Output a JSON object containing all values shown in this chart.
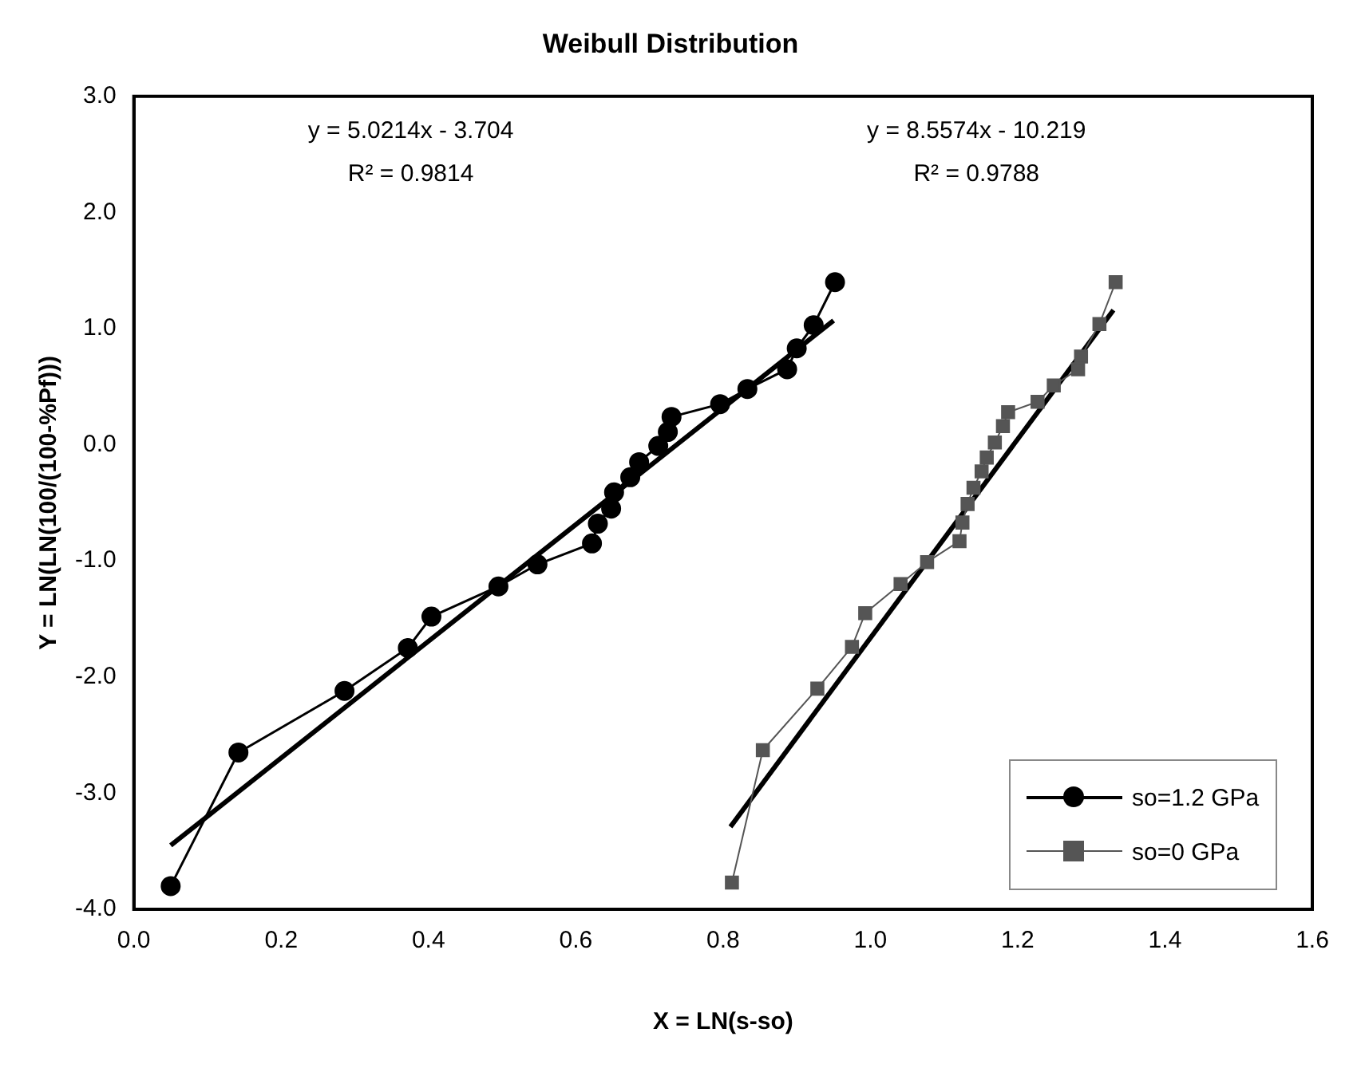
{
  "chart_data": {
    "type": "line",
    "title": "Weibull Distribution",
    "xlabel": "X = LN(s-so)",
    "ylabel": "Y = LN(LN(100/(100-%Pf)))",
    "xlim": [
      0,
      1.6
    ],
    "ylim": [
      -4,
      3
    ],
    "xticks": [
      {
        "value": 0,
        "label": "0.0"
      },
      {
        "value": 0.2,
        "label": "0.2"
      },
      {
        "value": 0.4,
        "label": "0.4"
      },
      {
        "value": 0.6,
        "label": "0.6"
      },
      {
        "value": 0.8,
        "label": "0.8"
      },
      {
        "value": 1,
        "label": "1.0"
      },
      {
        "value": 1.2,
        "label": "1.2"
      },
      {
        "value": 1.4,
        "label": "1.4"
      },
      {
        "value": 1.6,
        "label": "1.6"
      }
    ],
    "yticks": [
      {
        "value": -4,
        "label": "-4.0"
      },
      {
        "value": -3,
        "label": "-3.0"
      },
      {
        "value": -2,
        "label": "-2.0"
      },
      {
        "value": -1,
        "label": "-1.0"
      },
      {
        "value": 0,
        "label": "0.0"
      },
      {
        "value": 1,
        "label": "1.0"
      },
      {
        "value": 2,
        "label": "2.0"
      },
      {
        "value": 3,
        "label": "3.0"
      }
    ],
    "grid": false,
    "legend": "bottom right",
    "line_style": "solid",
    "annotations": [
      "y = 5.0214x - 3.704",
      "R² = 0.9814",
      "y = 8.5574x - 10.219",
      "R² = 0.9788"
    ],
    "series": [
      {
        "name": "so=1.2 GPa",
        "marker": "circle",
        "color": "#000000",
        "x": [
          0.05,
          0.142,
          0.286,
          0.372,
          0.404,
          0.495,
          0.548,
          0.622,
          0.63,
          0.648,
          0.652,
          0.674,
          0.686,
          0.712,
          0.725,
          0.73,
          0.796,
          0.833,
          0.887,
          0.9,
          0.923,
          0.952
        ],
        "values": [
          -3.8,
          -2.65,
          -2.12,
          -1.75,
          -1.48,
          -1.22,
          -1.03,
          -0.85,
          -0.68,
          -0.55,
          -0.41,
          -0.28,
          -0.15,
          -0.01,
          0.11,
          0.24,
          0.35,
          0.48,
          0.65,
          0.83,
          1.03,
          1.4
        ]
      },
      {
        "name": "so=0 GPa",
        "marker": "square",
        "color": "#555555",
        "x": [
          0.812,
          0.854,
          0.928,
          0.975,
          0.993,
          1.041,
          1.077,
          1.121,
          1.125,
          1.132,
          1.14,
          1.151,
          1.158,
          1.169,
          1.18,
          1.187,
          1.227,
          1.249,
          1.282,
          1.286,
          1.311,
          1.333
        ],
        "values": [
          -3.77,
          -2.63,
          -2.1,
          -1.74,
          -1.45,
          -1.2,
          -1.01,
          -0.83,
          -0.67,
          -0.51,
          -0.37,
          -0.23,
          -0.11,
          0.02,
          0.16,
          0.28,
          0.37,
          0.51,
          0.65,
          0.76,
          1.04,
          1.4
        ]
      },
      {
        "marker": "none",
        "color": "#000000",
        "x": [
          0.05,
          0.95
        ],
        "values": [
          -3.45,
          1.07
        ]
      },
      {
        "marker": "none",
        "color": "#000000",
        "x": [
          0.81,
          1.33
        ],
        "values": [
          -3.29,
          1.16
        ]
      }
    ]
  }
}
